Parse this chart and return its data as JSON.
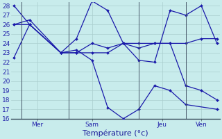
{
  "xlabel": "Température (°c)",
  "ylim": [
    16,
    28.4
  ],
  "bg_color": "#c8ecec",
  "grid_color": "#b0d8d8",
  "line_color": "#1a1aaa",
  "series": [
    {
      "x": [
        0,
        1,
        3,
        4,
        5,
        6,
        7,
        8,
        9,
        10,
        11,
        13
      ],
      "y": [
        22.5,
        26,
        23,
        23.3,
        22.2,
        17.2,
        16.0,
        17.0,
        19.5,
        19.0,
        17.5,
        17.0
      ]
    },
    {
      "x": [
        0,
        1,
        3,
        4,
        5,
        6,
        7,
        8,
        9,
        10,
        11,
        12,
        13
      ],
      "y": [
        28.0,
        26.0,
        23.0,
        24.5,
        28.5,
        27.5,
        24.0,
        22.2,
        22.0,
        27.5,
        27.0,
        28.0,
        24.0
      ]
    },
    {
      "x": [
        0,
        1,
        3,
        4,
        5,
        6,
        7,
        8,
        9,
        10,
        11,
        12,
        13
      ],
      "y": [
        26.0,
        26.5,
        23.0,
        23.0,
        24.0,
        23.5,
        24.0,
        24.0,
        24.0,
        24.0,
        24.0,
        24.5,
        24.5
      ]
    },
    {
      "x": [
        0,
        1,
        3,
        4,
        5,
        6,
        7,
        8,
        9,
        10,
        11,
        12,
        13
      ],
      "y": [
        26.0,
        26.0,
        23.0,
        23.0,
        23.0,
        23.0,
        24.0,
        23.5,
        24.0,
        24.0,
        19.5,
        19.0,
        18.0
      ]
    }
  ],
  "day_labels": [
    "Mer",
    "Sam",
    "Jeu",
    "Ven"
  ],
  "vline_x": [
    0.5,
    3.5,
    8.0,
    11.0
  ],
  "tick_color": "#2222aa",
  "xlabel_color": "#1a1a99",
  "xlabel_fontsize": 8,
  "tick_fontsize": 6.5,
  "marker": "D",
  "markersize": 2.0,
  "linewidth": 0.9
}
